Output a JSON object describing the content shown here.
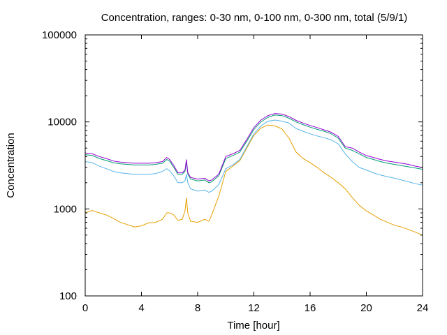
{
  "chart_data": {
    "type": "line",
    "title": "Concentration, ranges: 0-30 nm, 0-100 nm, 0-300 nm, total (5/9/1)",
    "xlabel": "Time [hour]",
    "ylabel": "Concentration",
    "xlim": [
      0,
      24
    ],
    "ylim": [
      100,
      100000
    ],
    "yscale": "log",
    "grid": false,
    "legend": "none",
    "x_ticks": [
      0,
      4,
      8,
      12,
      16,
      20,
      24
    ],
    "x_tick_labels": [
      "0",
      "4",
      "8",
      "12",
      "16",
      "20",
      "24"
    ],
    "y_ticks": [
      100,
      1000,
      10000,
      100000
    ],
    "y_tick_labels": [
      "100",
      "1000",
      "10000",
      "100000"
    ],
    "series": [
      {
        "color": "#e69f00",
        "x": [
          0,
          0.5,
          1,
          1.5,
          2,
          2.5,
          3,
          3.5,
          4,
          4.5,
          5,
          5.5,
          5.8,
          6,
          6.3,
          6.6,
          6.9,
          7.1,
          7.2,
          7.3,
          7.5,
          8,
          8.5,
          8.8,
          9,
          9.5,
          10,
          10.5,
          11,
          11.5,
          12,
          12.5,
          13,
          13.5,
          14,
          14.5,
          15,
          15.5,
          16,
          16.5,
          17,
          17.5,
          18,
          18.5,
          19,
          19.5,
          20,
          20.5,
          21,
          21.5,
          22,
          22.5,
          23,
          23.5,
          24
        ],
        "y": [
          900,
          960,
          900,
          850,
          780,
          700,
          660,
          620,
          640,
          690,
          700,
          760,
          900,
          900,
          850,
          740,
          760,
          950,
          1350,
          900,
          720,
          700,
          760,
          720,
          850,
          1400,
          2700,
          3100,
          3600,
          5000,
          7000,
          8500,
          9200,
          9000,
          8300,
          6500,
          4500,
          3800,
          3400,
          3000,
          2600,
          2300,
          2000,
          1700,
          1350,
          1100,
          950,
          850,
          760,
          700,
          650,
          620,
          580,
          540,
          500
        ]
      },
      {
        "color": "#56b4e9",
        "x": [
          0,
          0.5,
          1,
          1.5,
          2,
          2.5,
          3,
          3.5,
          4,
          4.5,
          5,
          5.5,
          5.8,
          6,
          6.3,
          6.6,
          6.9,
          7.1,
          7.2,
          7.3,
          7.5,
          8,
          8.5,
          8.8,
          9,
          9.5,
          10,
          10.5,
          11,
          11.5,
          12,
          12.5,
          13,
          13.5,
          14,
          14.5,
          15,
          15.5,
          16,
          16.5,
          17,
          17.5,
          18,
          18.5,
          19,
          19.5,
          20,
          20.5,
          21,
          21.5,
          22,
          22.5,
          23,
          23.5,
          24
        ],
        "y": [
          3500,
          3400,
          3100,
          2900,
          2700,
          2600,
          2550,
          2500,
          2500,
          2500,
          2550,
          2700,
          2900,
          2750,
          2400,
          2000,
          2000,
          2100,
          2500,
          2000,
          1700,
          1600,
          1650,
          1550,
          1600,
          1900,
          2900,
          3200,
          3700,
          5200,
          7300,
          9000,
          10200,
          10500,
          10200,
          9700,
          8400,
          7800,
          7300,
          6900,
          6600,
          6200,
          5600,
          4300,
          3500,
          3000,
          2800,
          2600,
          2450,
          2350,
          2250,
          2150,
          2050,
          1950,
          1880
        ]
      },
      {
        "color": "#009e73",
        "x": [
          0,
          0.5,
          1,
          1.5,
          2,
          2.5,
          3,
          3.5,
          4,
          4.5,
          5,
          5.5,
          5.8,
          6,
          6.3,
          6.6,
          6.9,
          7.1,
          7.2,
          7.3,
          7.5,
          8,
          8.5,
          8.8,
          9,
          9.5,
          10,
          10.5,
          11,
          11.5,
          12,
          12.5,
          13,
          13.5,
          14,
          14.5,
          15,
          15.5,
          16,
          16.5,
          17,
          17.5,
          18,
          18.5,
          19,
          19.5,
          20,
          20.5,
          21,
          21.5,
          22,
          22.5,
          23,
          23.5,
          24
        ],
        "y": [
          4200,
          4100,
          3800,
          3600,
          3400,
          3300,
          3250,
          3200,
          3200,
          3200,
          3250,
          3350,
          3700,
          3550,
          3000,
          2500,
          2500,
          2700,
          3500,
          2500,
          2200,
          2100,
          2150,
          2000,
          2050,
          2400,
          3800,
          4100,
          4500,
          6000,
          8200,
          10000,
          11300,
          12000,
          11800,
          11000,
          10000,
          9300,
          8700,
          8200,
          7800,
          7300,
          6500,
          5000,
          4700,
          4300,
          3900,
          3700,
          3500,
          3350,
          3250,
          3150,
          3050,
          2950,
          2850
        ]
      },
      {
        "color": "#9400d3",
        "x": [
          0,
          0.5,
          1,
          1.5,
          2,
          2.5,
          3,
          3.5,
          4,
          4.5,
          5,
          5.5,
          5.8,
          6,
          6.3,
          6.6,
          6.9,
          7.1,
          7.2,
          7.3,
          7.5,
          8,
          8.5,
          8.8,
          9,
          9.5,
          10,
          10.5,
          11,
          11.5,
          12,
          12.5,
          13,
          13.5,
          14,
          14.5,
          15,
          15.5,
          16,
          16.5,
          17,
          17.5,
          18,
          18.5,
          19,
          19.5,
          20,
          20.5,
          21,
          21.5,
          22,
          22.5,
          23,
          23.5,
          24
        ],
        "y": [
          4400,
          4300,
          4000,
          3800,
          3550,
          3450,
          3400,
          3350,
          3350,
          3350,
          3400,
          3500,
          3900,
          3700,
          3150,
          2600,
          2600,
          2800,
          3700,
          2600,
          2300,
          2200,
          2250,
          2100,
          2150,
          2500,
          4000,
          4300,
          4700,
          6300,
          8600,
          10500,
          11800,
          12500,
          12300,
          11500,
          10400,
          9700,
          9100,
          8600,
          8100,
          7600,
          6800,
          5200,
          5000,
          4500,
          4100,
          3900,
          3700,
          3550,
          3450,
          3350,
          3250,
          3100,
          3000
        ]
      }
    ]
  }
}
